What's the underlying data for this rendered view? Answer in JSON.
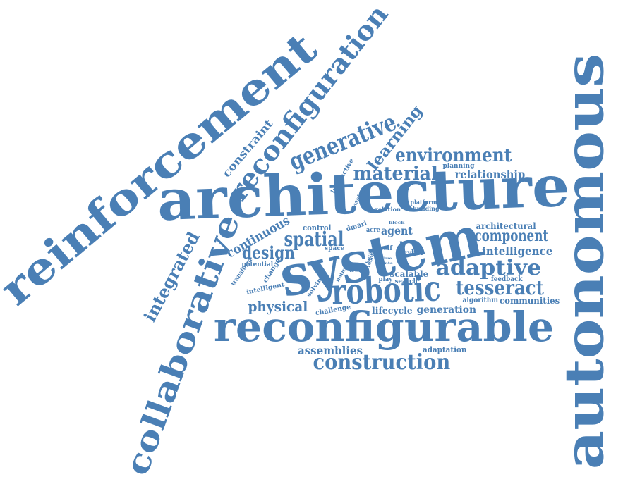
{
  "colors": {
    "word": "#4a7fb5",
    "background": "#ffffff"
  },
  "words": {
    "architecture": "architecture",
    "reconfigurable": "reconfigurable",
    "autonomous": "autonomous",
    "reinforcement": "reinforcement",
    "system": "system",
    "collaborative": "collaborative",
    "reconfiguration": "reconfiguration",
    "robotic": "robotic",
    "construction": "construction",
    "generative": "generative",
    "environment": "environment",
    "material": "material",
    "adaptive": "adaptive",
    "tesseract": "tesseract",
    "spatial": "spatial",
    "integrated": "integrated",
    "learning": "learning",
    "component": "component",
    "design": "design",
    "physical": "physical",
    "continuous": "continuous",
    "assemblies": "assemblies",
    "constraint": "constraint",
    "relationship": "relationship",
    "intelligence": "intelligence",
    "agent": "agent",
    "architectural": "architectural",
    "generation": "generation",
    "scalable": "scalable",
    "lifecycle": "lifecycle",
    "communities": "communities",
    "adaptation": "adaptation",
    "algorithm": "algorithm",
    "feedback": "feedback",
    "challenge": "challenge",
    "control": "control",
    "dmarl": "dmarl",
    "acre": "acre",
    "cyber": "cyber",
    "search": "search",
    "play": "play",
    "planning": "planning",
    "platform": "platform",
    "building": "building",
    "relation": "relation",
    "interactive": "interactive",
    "passive": "passive",
    "self": "self",
    "space": "space",
    "potential": "potential",
    "transform": "transform",
    "change": "change",
    "intelligent": "intelligent",
    "solving": "solving",
    "natural": "natural",
    "tree": "tree",
    "block": "block",
    "build": "build",
    "robot": "robot",
    "time": "time",
    "state": "state",
    "path": "path"
  }
}
